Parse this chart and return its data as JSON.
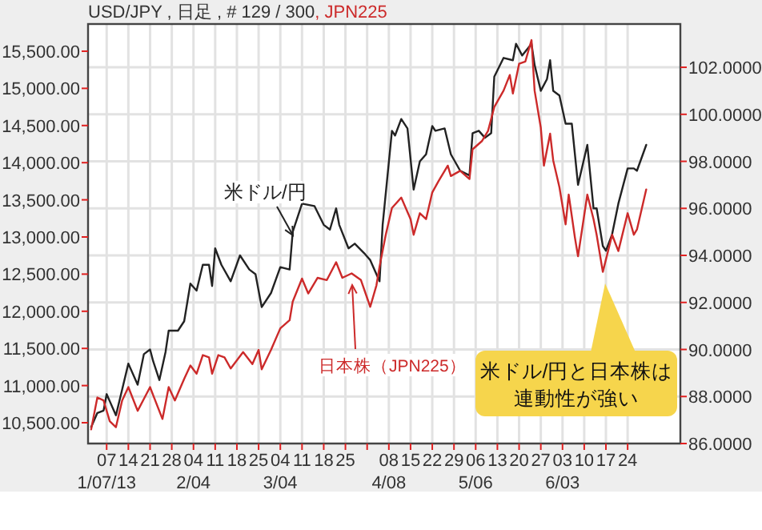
{
  "chart_data": {
    "type": "line",
    "title": "USD/JPY , 日足 , # 129 / 300",
    "subtitle": ", JPN225",
    "xlim": [
      "--01-01",
      "--07-11"
    ],
    "xticks": [
      {
        "value": "--01-07",
        "label": "07\n1/07/13"
      },
      {
        "value": "--01-14",
        "label": "14"
      },
      {
        "value": "--01-21",
        "label": "21"
      },
      {
        "value": "--01-28",
        "label": "28"
      },
      {
        "value": "--02-04",
        "label": "04\n2/04"
      },
      {
        "value": "--02-11",
        "label": "11"
      },
      {
        "value": "--02-18",
        "label": "18"
      },
      {
        "value": "--02-25",
        "label": "25"
      },
      {
        "value": "--03-04",
        "label": "04\n3/04"
      },
      {
        "value": "--03-11",
        "label": "11"
      },
      {
        "value": "--03-18",
        "label": "18"
      },
      {
        "value": "--03-25",
        "label": "25"
      },
      {
        "value": "--04-01",
        "label": null
      },
      {
        "value": "--04-08",
        "label": "08\n4/08"
      },
      {
        "value": "--04-15",
        "label": "15"
      },
      {
        "value": "--04-22",
        "label": "22"
      },
      {
        "value": "--04-29",
        "label": "29"
      },
      {
        "value": "--05-06",
        "label": "06\n5/06"
      },
      {
        "value": "--05-13",
        "label": "13"
      },
      {
        "value": "--05-20",
        "label": "20"
      },
      {
        "value": "--05-27",
        "label": "27"
      },
      {
        "value": "--06-03",
        "label": "03\n6/03"
      },
      {
        "value": "--06-10",
        "label": "10"
      },
      {
        "value": "--06-17",
        "label": "17"
      },
      {
        "value": "--06-24",
        "label": "24"
      }
    ],
    "ylim": [
      10220,
      15866
    ],
    "yticks": [
      {
        "value": 10500,
        "label": "10,500.00"
      },
      {
        "value": 11000,
        "label": "11,000.00"
      },
      {
        "value": 11500,
        "label": "11,500.00"
      },
      {
        "value": 12000,
        "label": "12,000.00"
      },
      {
        "value": 12500,
        "label": "12,500.00"
      },
      {
        "value": 13000,
        "label": "13,000.00"
      },
      {
        "value": 13500,
        "label": "13,500.00"
      },
      {
        "value": 14000,
        "label": "14,000.00"
      },
      {
        "value": 14500,
        "label": "14,500.00"
      },
      {
        "value": 15000,
        "label": "15,000.00"
      },
      {
        "value": 15500,
        "label": "15,500.00"
      }
    ],
    "y2lim": [
      86,
      103.84
    ],
    "y2ticks": [
      {
        "value": 86,
        "label": "86.0000"
      },
      {
        "value": 88,
        "label": "88.0000"
      },
      {
        "value": 90,
        "label": "90.0000"
      },
      {
        "value": 92,
        "label": "92.0000"
      },
      {
        "value": 94,
        "label": "94.0000"
      },
      {
        "value": 96,
        "label": "96.0000"
      },
      {
        "value": 98,
        "label": "98.0000"
      },
      {
        "value": 100,
        "label": "100.0000"
      },
      {
        "value": 102,
        "label": "102.0000"
      }
    ],
    "grid": true,
    "series": [
      {
        "name": "米ドル/円",
        "color": "#222222",
        "axis": "y2",
        "x": [
          "--01-02",
          "--01-04",
          "--01-06",
          "--01-07",
          "--01-08",
          "--01-10",
          "--01-12",
          "--01-14",
          "--01-17",
          "--01-19",
          "--01-21",
          "--01-22",
          "--01-24",
          "--01-26",
          "--01-27",
          "--01-30",
          "--02-01",
          "--02-03",
          "--02-05",
          "--02-07",
          "--02-09",
          "--02-10",
          "--02-11",
          "--02-13",
          "--02-16",
          "--02-19",
          "--02-22",
          "--02-24",
          "--02-26",
          "--03-01",
          "--03-04",
          "--03-07",
          "--03-08",
          "--03-11",
          "--03-15",
          "--03-18",
          "--03-20",
          "--03-22",
          "--03-23",
          "--03-26",
          "--03-28",
          "--03-31",
          "--04-02",
          "--04-05",
          "--04-06",
          "--04-09",
          "--04-10",
          "--04-12",
          "--04-14",
          "--04-16",
          "--04-18",
          "--04-20",
          "--04-22",
          "--04-23",
          "--04-26",
          "--04-28",
          "--05-01",
          "--05-04",
          "--05-05",
          "--05-07",
          "--05-09",
          "--05-11",
          "--05-12",
          "--05-15",
          "--05-18",
          "--05-19",
          "--05-21",
          "--05-24",
          "--05-25",
          "--05-27",
          "--05-29",
          "--05-30",
          "--05-31",
          "--06-02",
          "--06-04",
          "--06-06",
          "--06-08",
          "--06-11",
          "--06-13",
          "--06-14",
          "--06-16",
          "--06-17",
          "--06-19",
          "--06-21",
          "--06-24",
          "--06-26",
          "--06-27",
          "--06-30"
        ],
        "values": [
          86.7,
          87.3,
          87.4,
          88.1,
          87.8,
          87.2,
          88.3,
          89.4,
          88.5,
          89.8,
          90.0,
          89.5,
          88.7,
          89.9,
          90.8,
          90.8,
          91.2,
          92.8,
          92.5,
          93.6,
          93.6,
          92.7,
          94.3,
          93.6,
          92.9,
          94.0,
          93.4,
          93.2,
          91.8,
          92.4,
          93.5,
          93.4,
          95.0,
          96.2,
          96.1,
          95.3,
          95.1,
          96.0,
          95.3,
          94.3,
          94.5,
          94.1,
          93.8,
          92.9,
          95.3,
          99.3,
          99.1,
          99.8,
          99.4,
          96.8,
          98.0,
          98.3,
          99.5,
          99.3,
          99.4,
          98.3,
          97.6,
          97.4,
          99.2,
          99.3,
          99.0,
          99.2,
          101.6,
          102.4,
          102.3,
          103.0,
          102.5,
          103.0,
          102.1,
          101.0,
          101.5,
          102.3,
          101.0,
          100.8,
          99.6,
          99.6,
          97.0,
          98.7,
          96.0,
          96.0,
          94.4,
          94.2,
          94.9,
          96.2,
          97.7,
          97.7,
          97.6,
          98.7
        ]
      },
      {
        "name": "日本株（JPN225）",
        "color": "#cc2a2a",
        "x": [
          "--01-02",
          "--01-04",
          "--01-06",
          "--01-08",
          "--01-10",
          "--01-12",
          "--01-14",
          "--01-17",
          "--01-21",
          "--01-22",
          "--01-25",
          "--01-27",
          "--01-29",
          "--02-01",
          "--02-03",
          "--02-05",
          "--02-07",
          "--02-09",
          "--02-10",
          "--02-12",
          "--02-14",
          "--02-16",
          "--02-20",
          "--02-23",
          "--02-25",
          "--02-26",
          "--03-01",
          "--03-04",
          "--03-07",
          "--03-08",
          "--03-11",
          "--03-13",
          "--03-16",
          "--03-19",
          "--03-22",
          "--03-24",
          "--03-27",
          "--03-30",
          "--04-02",
          "--04-04",
          "--04-05",
          "--04-07",
          "--04-09",
          "--04-12",
          "--04-15",
          "--04-16",
          "--04-18",
          "--04-20",
          "--04-22",
          "--04-24",
          "--04-27",
          "--04-28",
          "--05-01",
          "--05-04",
          "--05-05",
          "--05-08",
          "--05-10",
          "--05-12",
          "--05-15",
          "--05-17",
          "--05-18",
          "--05-20",
          "--05-22",
          "--05-24",
          "--05-25",
          "--05-27",
          "--05-28",
          "--05-30",
          "--05-31",
          "--06-02",
          "--06-04",
          "--06-05",
          "--06-07",
          "--06-08",
          "--06-11",
          "--06-13",
          "--06-14",
          "--06-16",
          "--06-19",
          "--06-21",
          "--06-24",
          "--06-26",
          "--06-27",
          "--06-30"
        ],
        "values": [
          10410,
          10840,
          10800,
          10520,
          10440,
          10800,
          10980,
          10660,
          10980,
          10870,
          10550,
          10980,
          10800,
          11090,
          11270,
          11160,
          11410,
          11380,
          11160,
          11410,
          11380,
          11230,
          11450,
          11290,
          11480,
          11220,
          11480,
          11770,
          11880,
          12130,
          12440,
          12240,
          12450,
          12420,
          12660,
          12450,
          12510,
          12420,
          12060,
          12350,
          12600,
          13030,
          13390,
          13530,
          13240,
          13030,
          13320,
          13240,
          13600,
          13750,
          13960,
          13820,
          13890,
          13780,
          14180,
          14290,
          14430,
          14750,
          14970,
          15180,
          14930,
          15330,
          15360,
          15650,
          14970,
          14470,
          13960,
          14390,
          14030,
          13670,
          13170,
          13570,
          12990,
          12740,
          13570,
          13240,
          13030,
          12530,
          13030,
          12810,
          13320,
          13030,
          13100,
          13640
        ]
      }
    ],
    "annotations": [
      "米ドル/円と日本株は連動性が強い"
    ]
  }
}
